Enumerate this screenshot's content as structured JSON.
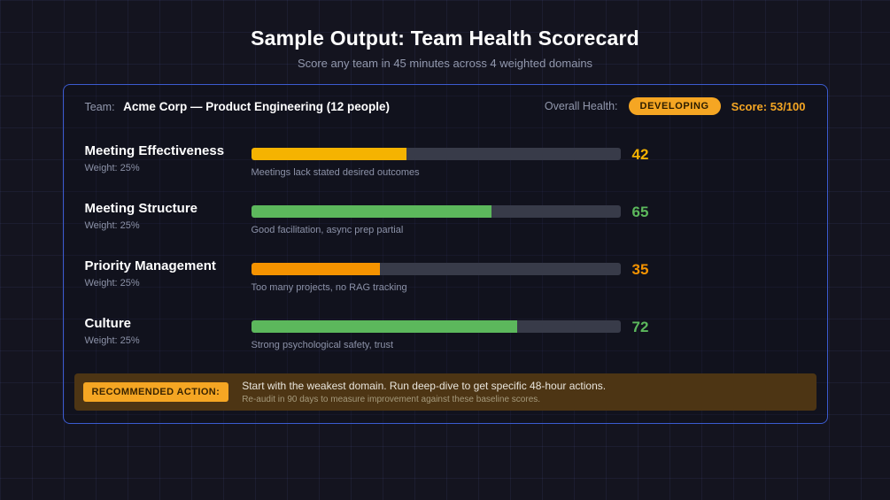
{
  "header": {
    "title": "Sample Output: Team Health Scorecard",
    "subtitle": "Score any team in 45 minutes across 4 weighted domains"
  },
  "card": {
    "team_label": "Team:",
    "team_name": "Acme Corp — Product Engineering (12 people)",
    "overall_label": "Overall Health:",
    "overall_badge": "DEVELOPING",
    "overall_score": "Score: 53/100",
    "domains": [
      {
        "name": "Meeting Effectiveness",
        "weight_label": "Weight: 25%",
        "score": 42,
        "note": "Meetings lack stated desired outcomes",
        "color": "#f5b301"
      },
      {
        "name": "Meeting Structure",
        "weight_label": "Weight: 25%",
        "score": 65,
        "note": "Good facilitation, async prep partial",
        "color": "#5cb85c"
      },
      {
        "name": "Priority Management",
        "weight_label": "Weight: 25%",
        "score": 35,
        "note": "Too many projects, no RAG tracking",
        "color": "#f59300"
      },
      {
        "name": "Culture",
        "weight_label": "Weight: 25%",
        "score": 72,
        "note": "Strong psychological safety, trust",
        "color": "#5cb85c"
      }
    ],
    "recommendation": {
      "badge": "RECOMMENDED ACTION:",
      "text": "Start with the weakest domain. Run deep-dive to get specific 48-hour actions.",
      "subtext": "Re-audit in 90 days to measure improvement against these baseline scores."
    }
  },
  "colors": {
    "accent_amber": "#f5a623",
    "green": "#5cb85c",
    "track": "#383b49",
    "card_border": "#3b5bd0",
    "background": "#14141f"
  },
  "chart_data": {
    "type": "bar",
    "orientation": "horizontal",
    "title": "Sample Output: Team Health Scorecard",
    "subtitle": "Score any team in 45 minutes across 4 weighted domains",
    "categories": [
      "Meeting Effectiveness",
      "Meeting Structure",
      "Priority Management",
      "Culture"
    ],
    "values": [
      42,
      65,
      35,
      72
    ],
    "weights": [
      "25%",
      "25%",
      "25%",
      "25%"
    ],
    "notes": [
      "Meetings lack stated desired outcomes",
      "Good facilitation, async prep partial",
      "Too many projects, no RAG tracking",
      "Strong psychological safety, trust"
    ],
    "xlim": [
      0,
      100
    ],
    "overall_score": 53,
    "overall_rating": "DEVELOPING",
    "legend_position": "none",
    "grid": false
  }
}
